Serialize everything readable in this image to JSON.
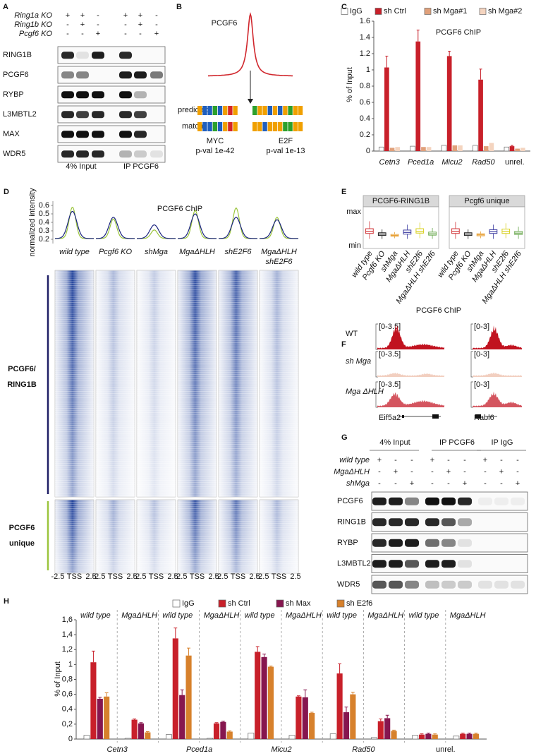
{
  "panel_a": {
    "letter": "A",
    "row_labels": [
      "Ring1a KO",
      "Ring1b KO",
      "Pcgf6 KO"
    ],
    "signs": [
      [
        "+",
        "+",
        "-",
        "+",
        "+",
        "-"
      ],
      [
        "-",
        "+",
        "-",
        "-",
        "+",
        "-"
      ],
      [
        "-",
        "-",
        "+",
        "-",
        "-",
        "+"
      ]
    ],
    "blots": [
      "RING1B",
      "PCGF6",
      "RYBP",
      "L3MBTL2",
      "MAX",
      "WDR5"
    ],
    "lane_groups": [
      "4% Input",
      "IP PCGF6"
    ]
  },
  "panel_b": {
    "letter": "B",
    "protein": "PCGF6",
    "logo_rows": [
      "predicted",
      "match"
    ],
    "motifs": [
      {
        "name": "MYC",
        "pval": "p-val 1e-42"
      },
      {
        "name": "E2F",
        "pval": "p-val 1e-13"
      }
    ]
  },
  "panel_d": {
    "letter": "D",
    "title": "PCGF6 ChIP",
    "ylabel": "normalized intensity",
    "ylim": [
      0.15,
      0.65
    ],
    "yticks": [
      0.2,
      0.3,
      0.4,
      0.5,
      0.6
    ],
    "samples": [
      [
        "wild type"
      ],
      [
        "Pcgf6 KO"
      ],
      [
        "shMga"
      ],
      [
        "MgaΔHLH"
      ],
      [
        "shE2F6"
      ],
      [
        "MgaΔHLH",
        "shE2F6"
      ]
    ],
    "xticks": [
      "-2.5",
      "TSS",
      "2.5"
    ],
    "clusters": [
      [
        "PCGF6/",
        "RING1B"
      ],
      [
        "PCGF6",
        "unique"
      ]
    ]
  },
  "panel_e": {
    "letter": "E"
  },
  "panel_f": {
    "letter": "F",
    "title": "PCGF6 ChIP",
    "rows": [
      "WT",
      "sh Mga",
      "Mga ΔHLH"
    ],
    "ranges": [
      "[0-3.5]",
      "[0-3]"
    ],
    "genes": [
      "Eif5a2",
      "Rabl6"
    ]
  },
  "panel_g": {
    "letter": "G",
    "lane_groups": [
      "4% Input",
      "IP PCGF6",
      "IP IgG"
    ],
    "row_labels": [
      "wild type",
      "MgaΔHLH",
      "shMga"
    ],
    "signs": [
      [
        "+",
        "-",
        "-",
        "+",
        "-",
        "-",
        "+",
        "-",
        "-"
      ],
      [
        "-",
        "+",
        "-",
        "-",
        "+",
        "-",
        "-",
        "+",
        "-"
      ],
      [
        "-",
        "-",
        "+",
        "-",
        "-",
        "+",
        "-",
        "-",
        "+"
      ]
    ],
    "blots": [
      "PCGF6",
      "RING1B",
      "RYBP",
      "L3MBTL2",
      "WDR5"
    ]
  },
  "chart_data": [
    {
      "type": "bar",
      "panel": "C",
      "title": "PCGF6 ChIP",
      "ylabel": "% of Input",
      "categories": [
        "Cetn3",
        "Pced1a",
        "Micu2",
        "Rad50",
        "unrel."
      ],
      "series": [
        {
          "name": "IgG",
          "color": "#ffffff",
          "values": [
            0.05,
            0.06,
            0.07,
            0.07,
            0.05
          ]
        },
        {
          "name": "sh Ctrl",
          "color": "#c8202a",
          "values": [
            1.03,
            1.35,
            1.17,
            0.88,
            0.06
          ],
          "errors": [
            0.14,
            0.14,
            0.06,
            0.13,
            0.01
          ]
        },
        {
          "name": "sh Mga#1",
          "color": "#e0a07a",
          "values": [
            0.04,
            0.05,
            0.07,
            0.06,
            0.03
          ]
        },
        {
          "name": "sh Mga#2",
          "color": "#f4d4bf",
          "values": [
            0.05,
            0.05,
            0.07,
            0.1,
            0.04
          ]
        }
      ],
      "ylim": [
        0,
        1.6
      ],
      "yticks": [
        0,
        0.2,
        0.4,
        0.6,
        0.8,
        1,
        1.2,
        1.4,
        1.6
      ]
    },
    {
      "type": "box",
      "title": "PCGF6-RING1B",
      "categories": [
        "wild type",
        "Pcgf6 KO",
        "shMga",
        "MgaΔHLH",
        "shE2f6",
        "MgaΔHLH shE2f6"
      ],
      "colors": [
        "#d2373a",
        "#222222",
        "#e8a23a",
        "#3b3ba0",
        "#d8d020",
        "#6aa84f"
      ],
      "boxes": [
        {
          "low": 0.2,
          "q1": 0.36,
          "median": 0.42,
          "q3": 0.5,
          "high": 0.72
        },
        {
          "low": 0.2,
          "q1": 0.3,
          "median": 0.34,
          "q3": 0.38,
          "high": 0.48
        },
        {
          "low": 0.22,
          "q1": 0.28,
          "median": 0.3,
          "q3": 0.33,
          "high": 0.4
        },
        {
          "low": 0.2,
          "q1": 0.34,
          "median": 0.39,
          "q3": 0.46,
          "high": 0.62
        },
        {
          "low": 0.22,
          "q1": 0.37,
          "median": 0.42,
          "q3": 0.5,
          "high": 0.68
        },
        {
          "low": 0.2,
          "q1": 0.31,
          "median": 0.35,
          "q3": 0.4,
          "high": 0.52
        }
      ],
      "ylim": [
        0,
        1
      ],
      "yticks": [
        {
          "value": 0,
          "label": "min"
        },
        {
          "value": 1,
          "label": "max"
        }
      ]
    },
    {
      "type": "box",
      "title": "Pcgf6 unique",
      "categories": [
        "wild type",
        "Pcgf6 KO",
        "shMga",
        "MgaΔHLH",
        "shE2f6",
        "MgaΔHLH shE2f6"
      ],
      "colors": [
        "#d2373a",
        "#222222",
        "#e8a23a",
        "#3b3ba0",
        "#d8d020",
        "#6aa84f"
      ],
      "boxes": [
        {
          "low": 0.2,
          "q1": 0.36,
          "median": 0.42,
          "q3": 0.5,
          "high": 0.7
        },
        {
          "low": 0.2,
          "q1": 0.3,
          "median": 0.34,
          "q3": 0.38,
          "high": 0.48
        },
        {
          "low": 0.22,
          "q1": 0.29,
          "median": 0.32,
          "q3": 0.35,
          "high": 0.42
        },
        {
          "low": 0.2,
          "q1": 0.36,
          "median": 0.41,
          "q3": 0.47,
          "high": 0.62
        },
        {
          "low": 0.22,
          "q1": 0.36,
          "median": 0.42,
          "q3": 0.49,
          "high": 0.66
        },
        {
          "low": 0.2,
          "q1": 0.33,
          "median": 0.37,
          "q3": 0.42,
          "high": 0.56
        }
      ],
      "ylim": [
        0,
        1
      ]
    },
    {
      "type": "bar",
      "panel": "H",
      "ylabel": "% of Input",
      "groups": [
        "Cetn3",
        "Pced1a",
        "Micu2",
        "Rad50",
        "unrel."
      ],
      "categories": [
        "wild type",
        "MgaΔHLH",
        "wild type",
        "MgaΔHLH",
        "wild type",
        "MgaΔHLH",
        "wild type",
        "MgaΔHLH",
        "wild type",
        "MgaΔHLH"
      ],
      "series": [
        {
          "name": "IgG",
          "color": "#ffffff",
          "values": [
            0.05,
            0.01,
            0.06,
            0.01,
            0.08,
            0.05,
            0.07,
            0.02,
            0.05,
            0.04
          ]
        },
        {
          "name": "sh Ctrl",
          "color": "#c8202a",
          "values": [
            1.03,
            0.26,
            1.35,
            0.21,
            1.17,
            0.57,
            0.88,
            0.24,
            0.06,
            0.07
          ],
          "errors": [
            0.15,
            0.01,
            0.14,
            0.01,
            0.07,
            0.01,
            0.13,
            0.03,
            0.01,
            0.01
          ]
        },
        {
          "name": "sh Max",
          "color": "#86164f",
          "values": [
            0.54,
            0.21,
            0.59,
            0.23,
            1.1,
            0.56,
            0.36,
            0.28,
            0.07,
            0.07
          ],
          "errors": [
            0.02,
            0.01,
            0.07,
            0.01,
            0.04,
            0.1,
            0.07,
            0.04,
            0.01,
            0.01
          ]
        },
        {
          "name": "sh E2f6",
          "color": "#d7812c",
          "values": [
            0.57,
            0.09,
            1.12,
            0.1,
            0.97,
            0.35,
            0.6,
            0.11,
            0.06,
            0.07
          ],
          "errors": [
            0.05,
            0.01,
            0.1,
            0.01,
            0.01,
            0.01,
            0.03,
            0.01,
            0.01,
            0.01
          ]
        }
      ],
      "ylim": [
        0,
        1.6
      ],
      "yticks": [
        0,
        {
          "value": 0.2,
          "label": "0,2"
        },
        {
          "value": 0.4,
          "label": "0,4"
        },
        {
          "value": 0.6,
          "label": "0,6"
        },
        {
          "value": 0.8,
          "label": "0,8"
        },
        1,
        {
          "value": 1.2,
          "label": "1,2"
        },
        {
          "value": 1.4,
          "label": "1,4"
        },
        {
          "value": 1.6,
          "label": "1,6"
        }
      ]
    }
  ]
}
